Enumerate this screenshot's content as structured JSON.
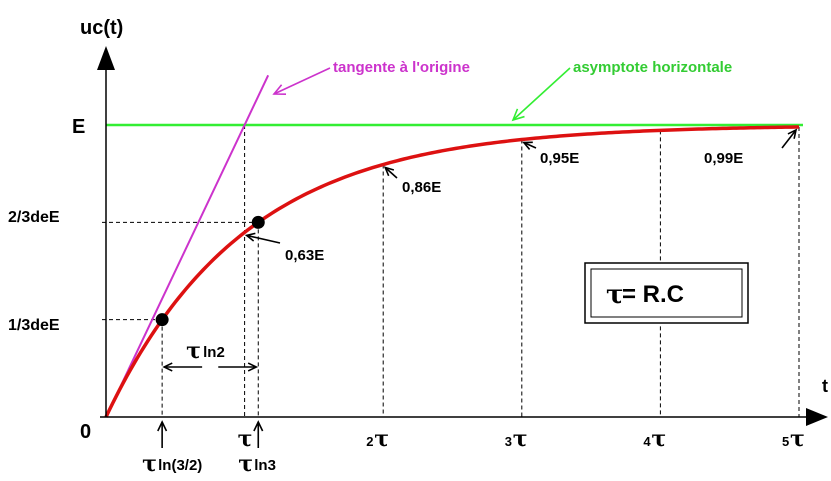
{
  "chart_data": {
    "type": "line",
    "title": "",
    "ylabel": "uc(t)",
    "xlabel": "t",
    "E": 1.0,
    "x_ticks": [
      {
        "value": 1,
        "label_sym": "τ",
        "label_pre": ""
      },
      {
        "value": 2,
        "label_sym": "τ",
        "label_pre": "2"
      },
      {
        "value": 3,
        "label_sym": "τ",
        "label_pre": "3"
      },
      {
        "value": 4,
        "label_sym": "τ",
        "label_pre": "4"
      },
      {
        "value": 5,
        "label_sym": "τ",
        "label_pre": "5"
      }
    ],
    "y_labels": {
      "E": "E",
      "two_thirds": "2/3deE",
      "one_third": "1/3deE",
      "origin": "0"
    },
    "series": [
      {
        "name": "",
        "kind": "curve",
        "formula": "E(1-exp(-t/τ))",
        "x_start": 0,
        "x_end": 5,
        "color": "#dd1111"
      },
      {
        "name": "tangente à l'origine",
        "kind": "tangent",
        "color": "#cc33cc"
      },
      {
        "name": "asymptote horizontale",
        "kind": "asymptote",
        "y": 1.0,
        "color": "#33ee33"
      }
    ],
    "annotations": [
      {
        "t": 1,
        "y": 0.63,
        "text": "0,63E"
      },
      {
        "t": 2,
        "y": 0.86,
        "text": "0,86E"
      },
      {
        "t": 3,
        "y": 0.95,
        "text": "0,95E"
      },
      {
        "t": 5,
        "y": 0.99,
        "text": "0,99E"
      }
    ],
    "points": [
      {
        "t": 0.405,
        "y": 0.3333,
        "label_sym": "τ",
        "label_text": "ln(3/2)"
      },
      {
        "t": 1.0986,
        "y": 0.6667,
        "label_sym": "τ",
        "label_text": "ln3"
      }
    ],
    "interval": {
      "from": 0.405,
      "to": 1.0986,
      "label_sym": "τ",
      "label_text": "ln2"
    },
    "formula_box": {
      "sym": "τ",
      "text": " = R.C"
    }
  },
  "labels": {
    "tangent": "tangente à l'origine",
    "asymptote": "asymptote horizontale"
  },
  "colors": {
    "curve": "#dd1111",
    "tangent": "#cc33cc",
    "asymptote": "#33ee33",
    "axis": "#000000"
  }
}
